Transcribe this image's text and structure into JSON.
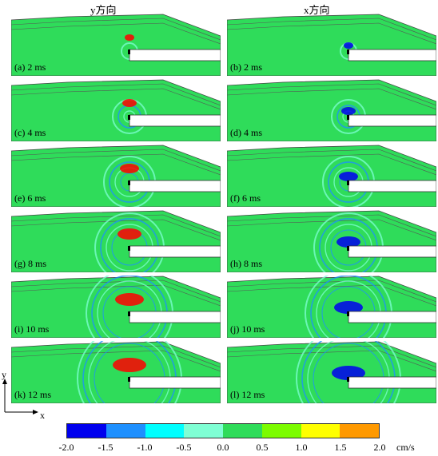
{
  "headers": {
    "left": "y方向",
    "right": "x方向"
  },
  "panels": [
    {
      "label": "(a) 2 ms"
    },
    {
      "label": "(b) 2 ms"
    },
    {
      "label": "(c) 4 ms"
    },
    {
      "label": "(d) 4 ms"
    },
    {
      "label": "(e) 6 ms"
    },
    {
      "label": "(f) 6 ms"
    },
    {
      "label": "(g) 8 ms"
    },
    {
      "label": "(h) 8 ms"
    },
    {
      "label": "(i) 10 ms"
    },
    {
      "label": "(j) 10 ms"
    },
    {
      "label": "(k) 12 ms"
    },
    {
      "label": "(l) 12 ms"
    }
  ],
  "axis": {
    "y": "y",
    "x": "x"
  },
  "colorbar": {
    "colors": [
      "#0000ee",
      "#1e90ff",
      "#00ffff",
      "#7fffd4",
      "#2fdc5a",
      "#7cfc00",
      "#ffff00",
      "#ff9900",
      "#ff0000"
    ],
    "ticks": [
      "-2.0",
      "-1.5",
      "-1.0",
      "-0.5",
      "0.0",
      "0.5",
      "1.0",
      "1.5",
      "2.0"
    ],
    "unit": "cm/s"
  }
}
